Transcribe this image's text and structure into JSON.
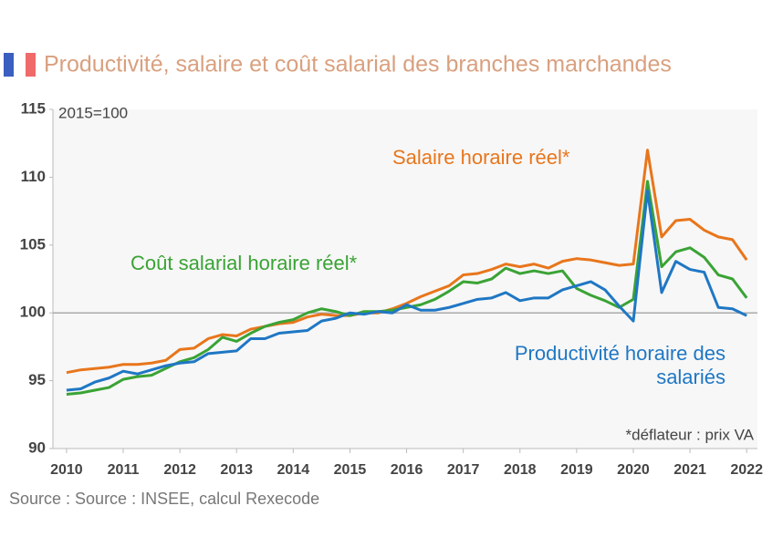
{
  "chart_data": {
    "type": "line",
    "title": "Productivité, salaire et coût salarial des branches marchandes",
    "subtitle": "2015=100",
    "annotation": "*déflateur : prix VA",
    "source": "Source :  Source : INSEE, calcul Rexecode",
    "x": [
      2010,
      2010.25,
      2010.5,
      2010.75,
      2011,
      2011.25,
      2011.5,
      2011.75,
      2012,
      2012.25,
      2012.5,
      2012.75,
      2013,
      2013.25,
      2013.5,
      2013.75,
      2014,
      2014.25,
      2014.5,
      2014.75,
      2015,
      2015.25,
      2015.5,
      2015.75,
      2016,
      2016.25,
      2016.5,
      2016.75,
      2017,
      2017.25,
      2017.5,
      2017.75,
      2018,
      2018.25,
      2018.5,
      2018.75,
      2019,
      2019.25,
      2019.5,
      2019.75,
      2020,
      2020.25,
      2020.5,
      2020.75,
      2021,
      2021.25,
      2021.5,
      2021.75,
      2022
    ],
    "series": [
      {
        "name": "Salaire horaire réel*",
        "color": "#e8761c",
        "values": [
          95.6,
          95.8,
          95.9,
          96.0,
          96.2,
          96.2,
          96.3,
          96.5,
          97.3,
          97.4,
          98.1,
          98.4,
          98.3,
          98.8,
          99.0,
          99.2,
          99.3,
          99.7,
          99.9,
          99.8,
          99.8,
          100.0,
          100.0,
          100.3,
          100.7,
          101.2,
          101.6,
          102.0,
          102.8,
          102.9,
          103.2,
          103.6,
          103.4,
          103.6,
          103.3,
          103.8,
          104.0,
          103.9,
          103.7,
          103.5,
          103.6,
          112.0,
          105.6,
          106.8,
          106.9,
          106.1,
          105.6,
          105.4,
          103.9
        ]
      },
      {
        "name": "Coût salarial horaire réel*",
        "color": "#3aa335",
        "values": [
          94.0,
          94.1,
          94.3,
          94.5,
          95.1,
          95.3,
          95.4,
          95.9,
          96.4,
          96.7,
          97.3,
          98.2,
          97.9,
          98.5,
          99.0,
          99.3,
          99.5,
          100.0,
          100.3,
          100.1,
          99.8,
          100.1,
          100.1,
          100.2,
          100.4,
          100.6,
          101.0,
          101.6,
          102.3,
          102.2,
          102.5,
          103.3,
          102.9,
          103.1,
          102.9,
          103.1,
          101.8,
          101.3,
          100.9,
          100.4,
          101.0,
          109.7,
          103.4,
          104.5,
          104.8,
          104.1,
          102.8,
          102.5,
          101.1
        ]
      },
      {
        "name": "Productivité horaire des salariés",
        "color": "#1f77c4",
        "values": [
          94.3,
          94.4,
          94.9,
          95.2,
          95.7,
          95.5,
          95.8,
          96.1,
          96.3,
          96.4,
          97.0,
          97.1,
          97.2,
          98.1,
          98.1,
          98.5,
          98.6,
          98.7,
          99.4,
          99.6,
          100.0,
          99.9,
          100.1,
          100.0,
          100.6,
          100.2,
          100.2,
          100.4,
          100.7,
          101.0,
          101.1,
          101.5,
          100.9,
          101.1,
          101.1,
          101.7,
          102.0,
          102.3,
          101.7,
          100.5,
          99.4,
          109.0,
          101.5,
          103.8,
          103.2,
          103.0,
          100.4,
          100.3,
          99.8
        ]
      }
    ],
    "xlim": [
      2009.76,
      2022.19
    ],
    "xticks": [
      2010,
      2011,
      2012,
      2013,
      2014,
      2015,
      2016,
      2017,
      2018,
      2019,
      2020,
      2021,
      2022
    ],
    "ylim": [
      90,
      115
    ],
    "yticks": [
      90,
      95,
      100,
      105,
      110,
      115
    ],
    "reference_line": 100
  }
}
